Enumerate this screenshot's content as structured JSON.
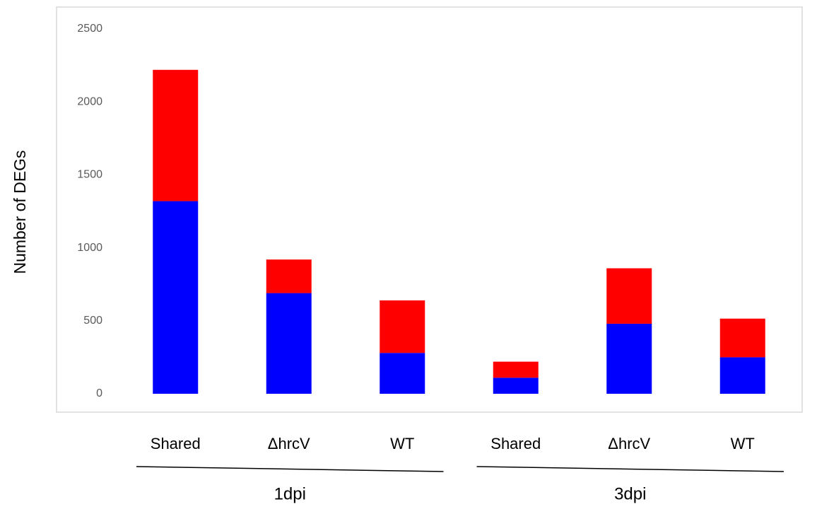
{
  "chart_data": {
    "type": "stacked_bar",
    "y_label": "Number of DEGs",
    "categories": [
      "Shared",
      "ΔhrcV",
      "WT",
      "Shared",
      "ΔhrcV",
      "WT"
    ],
    "groups": [
      "1dpi",
      "3dpi"
    ],
    "series": [
      {
        "color": "#0000ff",
        "values": [
          1320,
          690,
          280,
          110,
          480,
          250
        ]
      },
      {
        "color": "#ff0000",
        "values": [
          900,
          230,
          360,
          110,
          380,
          265
        ]
      }
    ],
    "ylim": [
      0,
      2500
    ],
    "yticks": [
      0,
      500,
      1000,
      1500,
      2000,
      2500
    ],
    "grid": false
  }
}
